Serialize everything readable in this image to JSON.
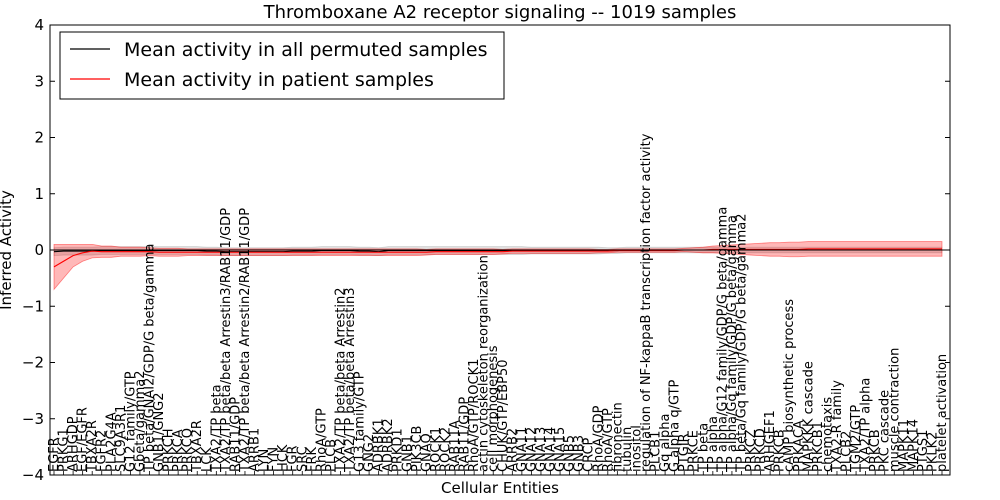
{
  "chart_data": {
    "type": "line",
    "title": "Thromboxane A2 receptor signaling -- 1019 samples",
    "xlabel": "Cellular Entities",
    "ylabel": "Inferred Activity",
    "ylim": [
      -4,
      4
    ],
    "yticks": [
      -4,
      -3,
      -2,
      -1,
      0,
      1,
      2,
      3,
      4
    ],
    "ytick_labels": [
      "−4",
      "−3",
      "−2",
      "−1",
      "0",
      "1",
      "2",
      "3",
      "4"
    ],
    "legend": {
      "placement": "top-left"
    },
    "categories": [
      "EGFR",
      "PRKG1",
      "ARHGDP",
      "EGF/EGFR",
      "TBXA2R",
      "FGFR2",
      "PLA2G4A",
      "SLC9A3R1",
      "G12 family/GTP",
      "Gbeta/gamma2",
      "TP beta/GNAI2/GDP/G beta/gamma",
      "GNB1/GNG2",
      "PRKCH",
      "PRKCA",
      "PRKCQ",
      "TBXA2R",
      "LCK",
      "TXA2/TP beta",
      "TXA2/TP beta/beta Arrestin3/RAB11/GDP",
      "RAB11/GDP",
      "TXA2/TP beta/beta Arrestin2/RAB11/GDP",
      "ARRB1",
      "LYN",
      "FYN",
      "HCK",
      "FGR",
      "SRC",
      "FRK",
      "RhoA/GTP",
      "PLCB",
      "TXA2/TP beta/beta Arrestin2",
      "TXA2/TP beta/beta Arrestin3",
      "G13 family/GTP",
      "GNG2",
      "ADRBK1",
      "ADRBK2",
      "PRKD1",
      "GNB1",
      "PIK3CB",
      "GNAQ",
      "ROCK1",
      "ROCK2",
      "RAB11A",
      "RAB11/GDP",
      "RhoA/GTP/ROCK1",
      "actin cytoskeleton reorganization",
      "cell morphogenesis",
      "CHUK/GTP/EBP50",
      "ARRB2",
      "GNA11",
      "GNA12",
      "GNA13",
      "GNA14",
      "GNA15",
      "GNB5",
      "GNB3",
      "CRCP",
      "RhoA/GDP",
      "RhoA/GTP",
      "fibronectin",
      "tubulin",
      "inositol",
      "regulation of NF-kappaB transcription factor activity",
      "PLCB1",
      "Gq alpha",
      "G alpha q/GTP",
      "PTGIR",
      "PRKCE",
      "TP beta",
      "TP alpha",
      "TP alpha/G12 family/GDP/G beta/gamma",
      "TP alpha/Gq family/GDP/G beta/gamma",
      "TP beta/Gq family/GDP/G beta/gamma2",
      "PRKCZ",
      "PRKCD",
      "ARHGEF1",
      "PRKCB",
      "cAMP biosynthetic process",
      "PRKACA",
      "MAPKKK cascade",
      "PRKCB1",
      "chemotaxis",
      "TXA2-R family",
      "PLCB2",
      "TGM2/GTP",
      "TXA2/TP alpha",
      "PRKCB",
      "PKC cascade",
      "muscle contraction",
      "MAPK11",
      "MAPK14",
      "PTGS1",
      "PKLK2",
      "platelet activation"
    ],
    "series": [
      {
        "name": "Mean activity in all permuted samples",
        "color": "#000000",
        "values": [
          -0.03,
          -0.02,
          -0.02,
          -0.02,
          -0.02,
          -0.01,
          -0.01,
          -0.01,
          -0.01,
          -0.01,
          -0.01,
          -0.01,
          -0.01,
          -0.01,
          -0.01,
          -0.01,
          -0.02,
          -0.02,
          -0.03,
          -0.03,
          -0.03,
          -0.03,
          -0.03,
          -0.03,
          -0.03,
          -0.02,
          -0.02,
          -0.02,
          -0.01,
          -0.01,
          -0.01,
          -0.01,
          -0.02,
          -0.02,
          -0.03,
          -0.01,
          -0.01,
          -0.01,
          -0.01,
          -0.01,
          -0.01,
          -0.01,
          -0.01,
          -0.01,
          -0.01,
          -0.01,
          -0.01,
          -0.01,
          -0.01,
          -0.01,
          -0.01,
          -0.01,
          -0.01,
          -0.01,
          -0.01,
          -0.01,
          -0.01,
          -0.01,
          -0.01,
          -0.01,
          0.0,
          0.0,
          0.0,
          0.0,
          0.0,
          0.0,
          0.0,
          0.0,
          0.0,
          0.0,
          0.0,
          0.0,
          0.0,
          0.0,
          0.0,
          0.0,
          0.0,
          0.0,
          0.0,
          0.0,
          0.0,
          0.0,
          0.0,
          0.0,
          0.0,
          0.0,
          0.0,
          0.0,
          0.0,
          0.0,
          0.0,
          0.0,
          0.0,
          0.0
        ],
        "band": [
          0.07,
          0.07,
          0.07,
          0.07,
          0.07,
          0.07,
          0.07,
          0.07,
          0.07,
          0.07,
          0.07,
          0.07,
          0.07,
          0.07,
          0.07,
          0.07,
          0.07,
          0.07,
          0.07,
          0.07,
          0.07,
          0.07,
          0.07,
          0.07,
          0.07,
          0.07,
          0.07,
          0.07,
          0.07,
          0.07,
          0.07,
          0.07,
          0.07,
          0.07,
          0.07,
          0.07,
          0.07,
          0.07,
          0.07,
          0.07,
          0.07,
          0.07,
          0.07,
          0.07,
          0.07,
          0.07,
          0.07,
          0.07,
          0.07,
          0.07,
          0.06,
          0.06,
          0.06,
          0.06,
          0.06,
          0.06,
          0.06,
          0.06,
          0.05,
          0.05,
          0.05,
          0.05,
          0.05,
          0.05,
          0.05,
          0.05,
          0.05,
          0.05,
          0.05,
          0.05,
          0.05,
          0.05,
          0.05,
          0.05,
          0.05,
          0.05,
          0.05,
          0.05,
          0.05,
          0.05,
          0.05,
          0.05,
          0.05,
          0.05,
          0.05,
          0.05,
          0.05,
          0.05,
          0.05,
          0.05,
          0.05,
          0.05,
          0.05,
          0.05
        ]
      },
      {
        "name": "Mean activity in patient samples",
        "color": "#ff0000",
        "values": [
          -0.3,
          -0.2,
          -0.1,
          -0.05,
          -0.02,
          -0.03,
          -0.03,
          -0.03,
          -0.03,
          -0.03,
          -0.03,
          -0.04,
          -0.04,
          -0.04,
          -0.04,
          -0.04,
          -0.04,
          -0.04,
          -0.04,
          -0.04,
          -0.04,
          -0.04,
          -0.04,
          -0.04,
          -0.04,
          -0.04,
          -0.04,
          -0.04,
          -0.04,
          -0.04,
          -0.04,
          -0.04,
          -0.04,
          -0.04,
          -0.04,
          -0.04,
          -0.04,
          -0.04,
          -0.04,
          -0.04,
          -0.03,
          -0.03,
          -0.03,
          -0.03,
          -0.03,
          -0.03,
          -0.03,
          -0.03,
          -0.02,
          -0.02,
          -0.02,
          -0.02,
          -0.02,
          -0.02,
          -0.02,
          -0.02,
          -0.02,
          -0.02,
          -0.02,
          -0.01,
          -0.01,
          -0.01,
          -0.01,
          -0.01,
          -0.01,
          -0.01,
          0.0,
          0.0,
          0.0,
          0.01,
          0.01,
          0.01,
          0.01,
          0.01,
          0.01,
          0.01,
          0.01,
          0.01,
          0.01,
          0.02,
          0.02,
          0.02,
          0.02,
          0.02,
          0.02,
          0.02,
          0.02,
          0.02,
          0.02,
          0.02,
          0.02,
          0.02,
          0.02,
          0.02
        ],
        "band": [
          0.4,
          0.3,
          0.2,
          0.15,
          0.12,
          0.1,
          0.1,
          0.08,
          0.08,
          0.08,
          0.07,
          0.07,
          0.07,
          0.07,
          0.06,
          0.06,
          0.06,
          0.06,
          0.06,
          0.06,
          0.06,
          0.06,
          0.06,
          0.06,
          0.06,
          0.06,
          0.06,
          0.06,
          0.06,
          0.06,
          0.06,
          0.06,
          0.06,
          0.06,
          0.06,
          0.06,
          0.06,
          0.06,
          0.06,
          0.05,
          0.05,
          0.05,
          0.05,
          0.05,
          0.05,
          0.05,
          0.05,
          0.04,
          0.04,
          0.04,
          0.04,
          0.04,
          0.04,
          0.04,
          0.04,
          0.04,
          0.04,
          0.03,
          0.03,
          0.03,
          0.03,
          0.03,
          0.03,
          0.03,
          0.03,
          0.03,
          0.03,
          0.04,
          0.05,
          0.06,
          0.07,
          0.08,
          0.09,
          0.1,
          0.11,
          0.12,
          0.12,
          0.13,
          0.13,
          0.13,
          0.13,
          0.13,
          0.13,
          0.13,
          0.13,
          0.13,
          0.13,
          0.13,
          0.13,
          0.13,
          0.13,
          0.13,
          0.13,
          0.13
        ]
      }
    ]
  }
}
